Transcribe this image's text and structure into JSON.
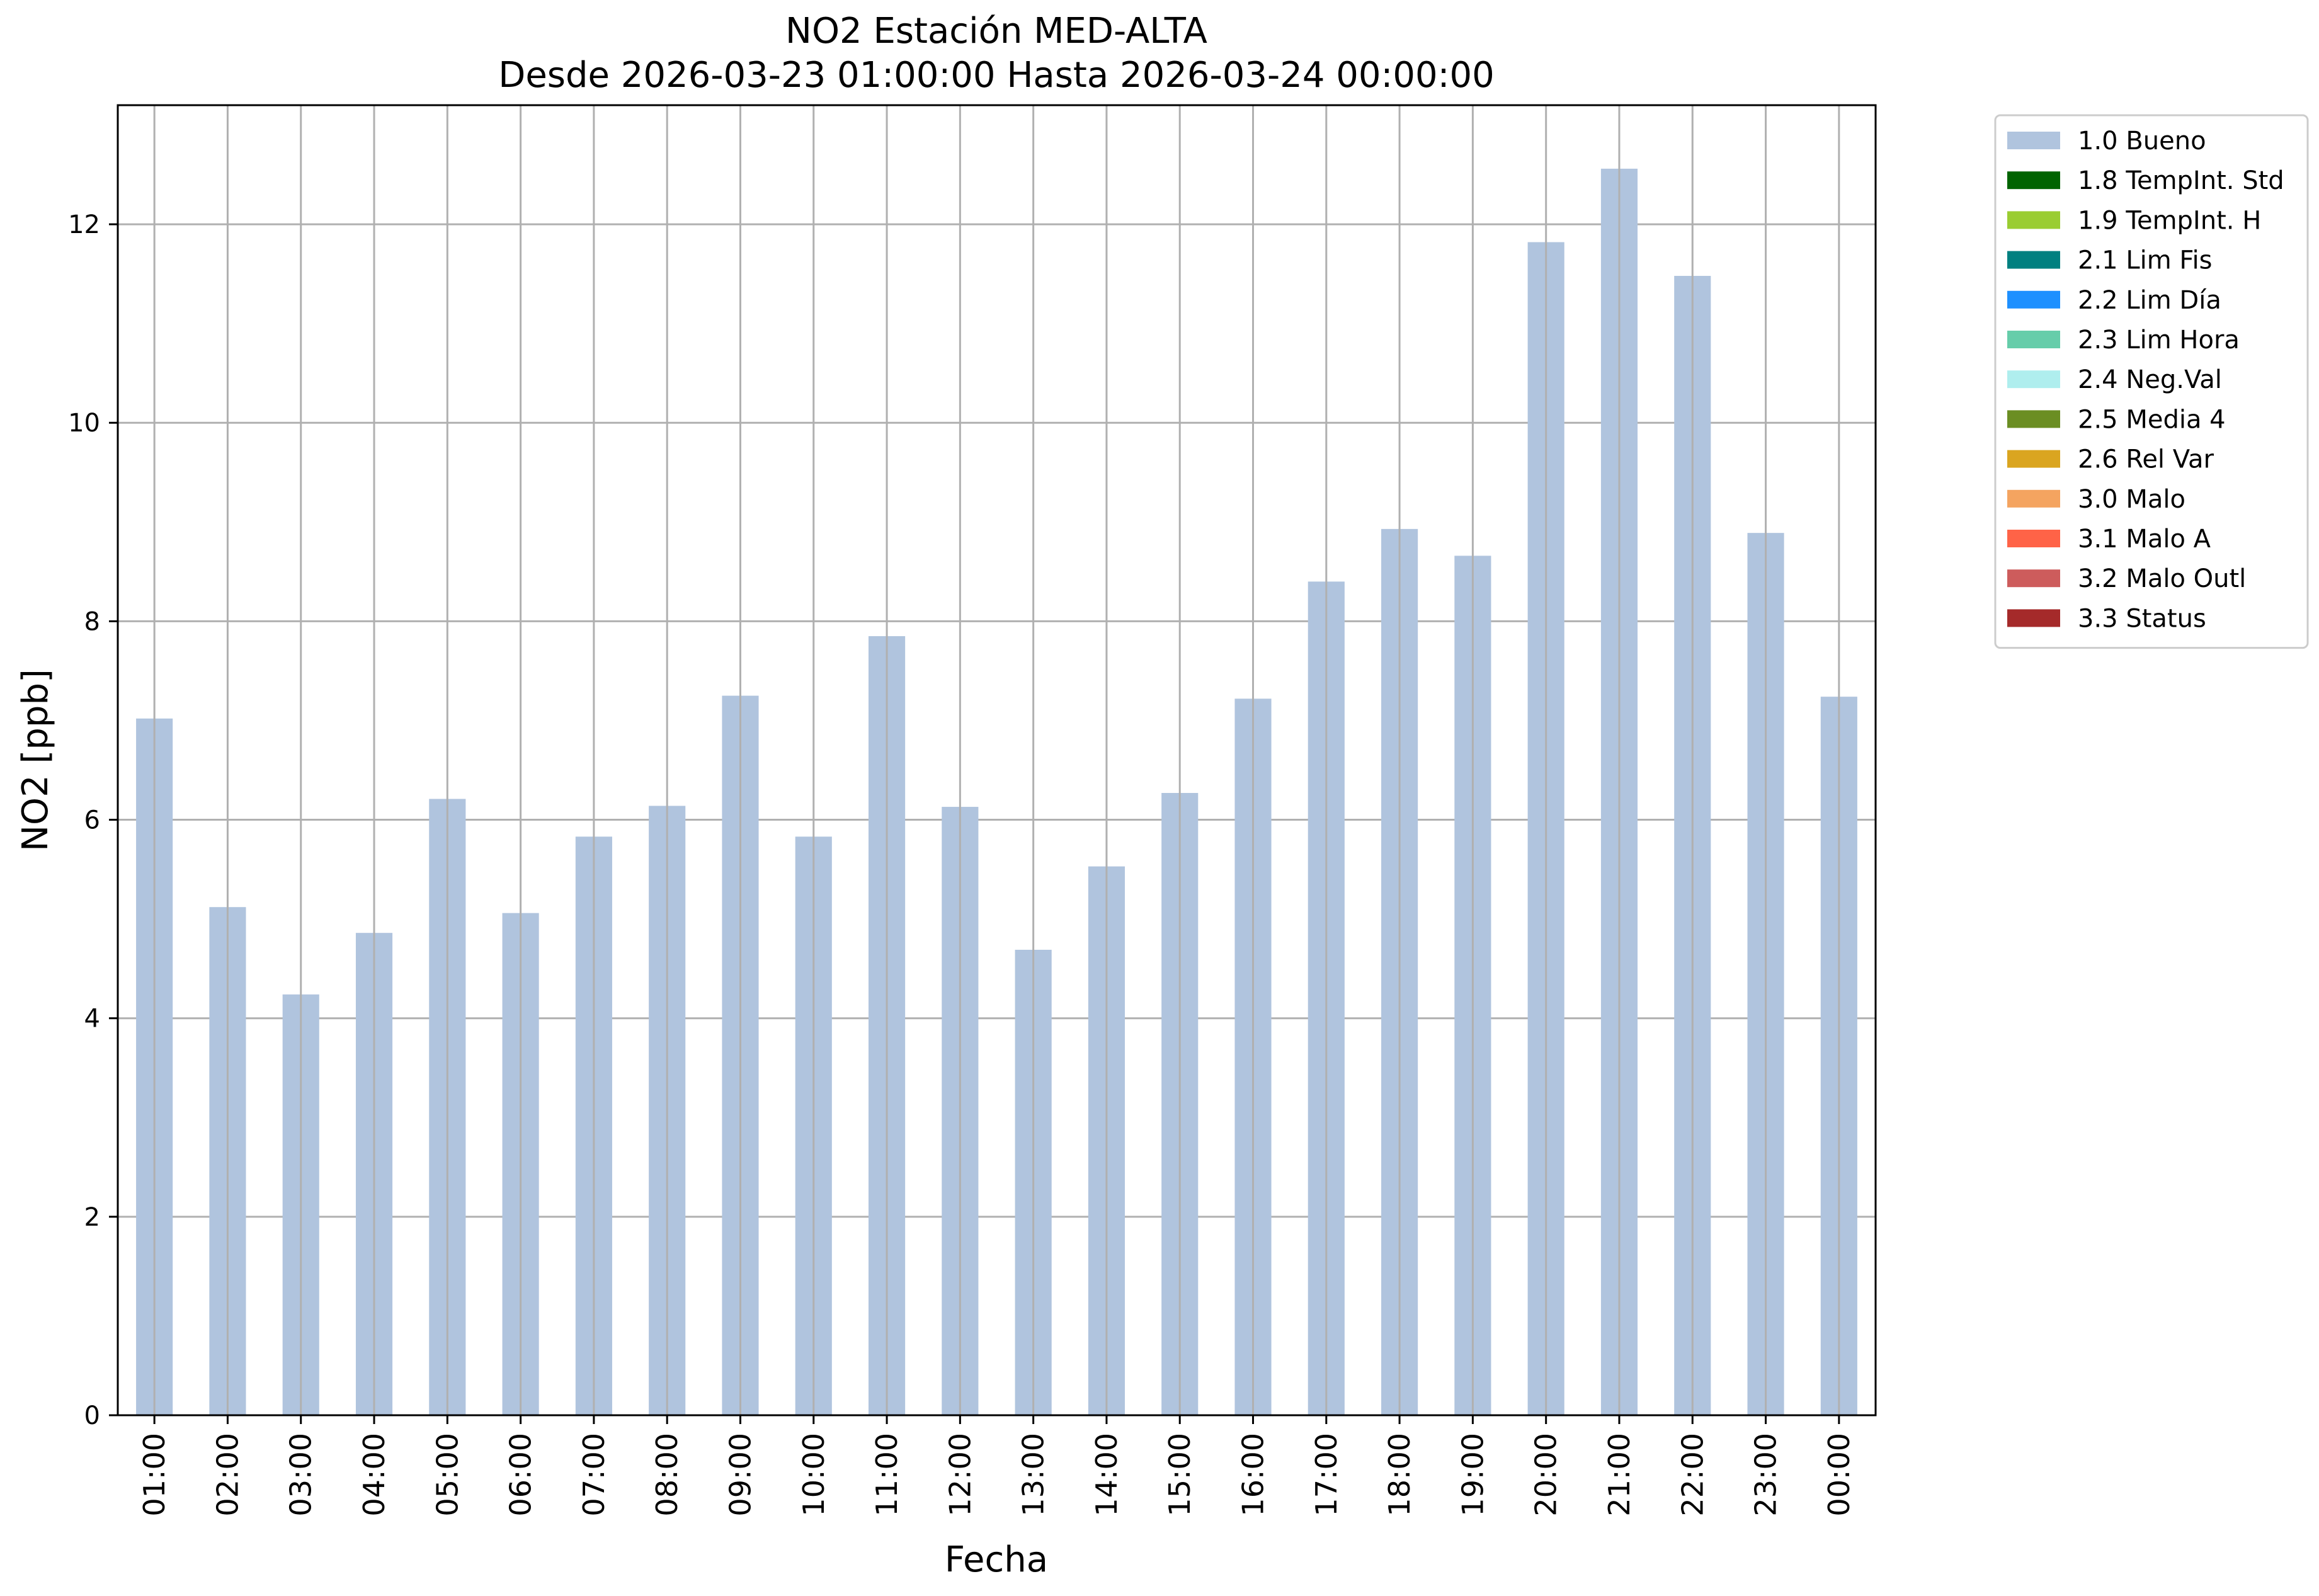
{
  "chart_data": {
    "type": "bar",
    "title": "NO2 Estación MED-ALTA",
    "subtitle": "Desde 2026-03-23 01:00:00 Hasta 2026-03-24 00:00:00",
    "xlabel": "Fecha",
    "ylabel": "NO2 [ppb]",
    "ylim": [
      0,
      13.2
    ],
    "yticks": [
      0,
      2,
      4,
      6,
      8,
      10,
      12
    ],
    "grid": true,
    "legend_position": "outside-top-right",
    "categories": [
      "01:00",
      "02:00",
      "03:00",
      "04:00",
      "05:00",
      "06:00",
      "07:00",
      "08:00",
      "09:00",
      "10:00",
      "11:00",
      "12:00",
      "13:00",
      "14:00",
      "15:00",
      "16:00",
      "17:00",
      "18:00",
      "19:00",
      "20:00",
      "21:00",
      "22:00",
      "23:00",
      "00:00"
    ],
    "series": [
      {
        "name": "1.0 Bueno",
        "color": "#b0c4de",
        "values": [
          7.02,
          5.12,
          4.24,
          4.86,
          6.21,
          5.06,
          5.83,
          6.14,
          7.25,
          5.83,
          7.85,
          6.13,
          4.69,
          5.53,
          6.27,
          7.22,
          8.4,
          8.93,
          8.66,
          11.82,
          12.56,
          11.48,
          8.89,
          7.24
        ]
      }
    ],
    "legend": [
      {
        "label": "1.0 Bueno",
        "color": "#b0c4de"
      },
      {
        "label": "1.8 TempInt. Std",
        "color": "#006400"
      },
      {
        "label": "1.9 TempInt. H",
        "color": "#9acd32"
      },
      {
        "label": "2.1 Lim Fis",
        "color": "#008080"
      },
      {
        "label": "2.2 Lim Día",
        "color": "#1e90ff"
      },
      {
        "label": "2.3 Lim Hora",
        "color": "#66cdaa"
      },
      {
        "label": "2.4 Neg.Val",
        "color": "#afeeee"
      },
      {
        "label": "2.5 Media 4",
        "color": "#6b8e23"
      },
      {
        "label": "2.6 Rel Var",
        "color": "#daa520"
      },
      {
        "label": "3.0 Malo",
        "color": "#f4a460"
      },
      {
        "label": "3.1 Malo A",
        "color": "#ff6347"
      },
      {
        "label": "3.2 Malo Outl",
        "color": "#cd5c5c"
      },
      {
        "label": "3.3 Status",
        "color": "#a52a2a"
      }
    ]
  }
}
